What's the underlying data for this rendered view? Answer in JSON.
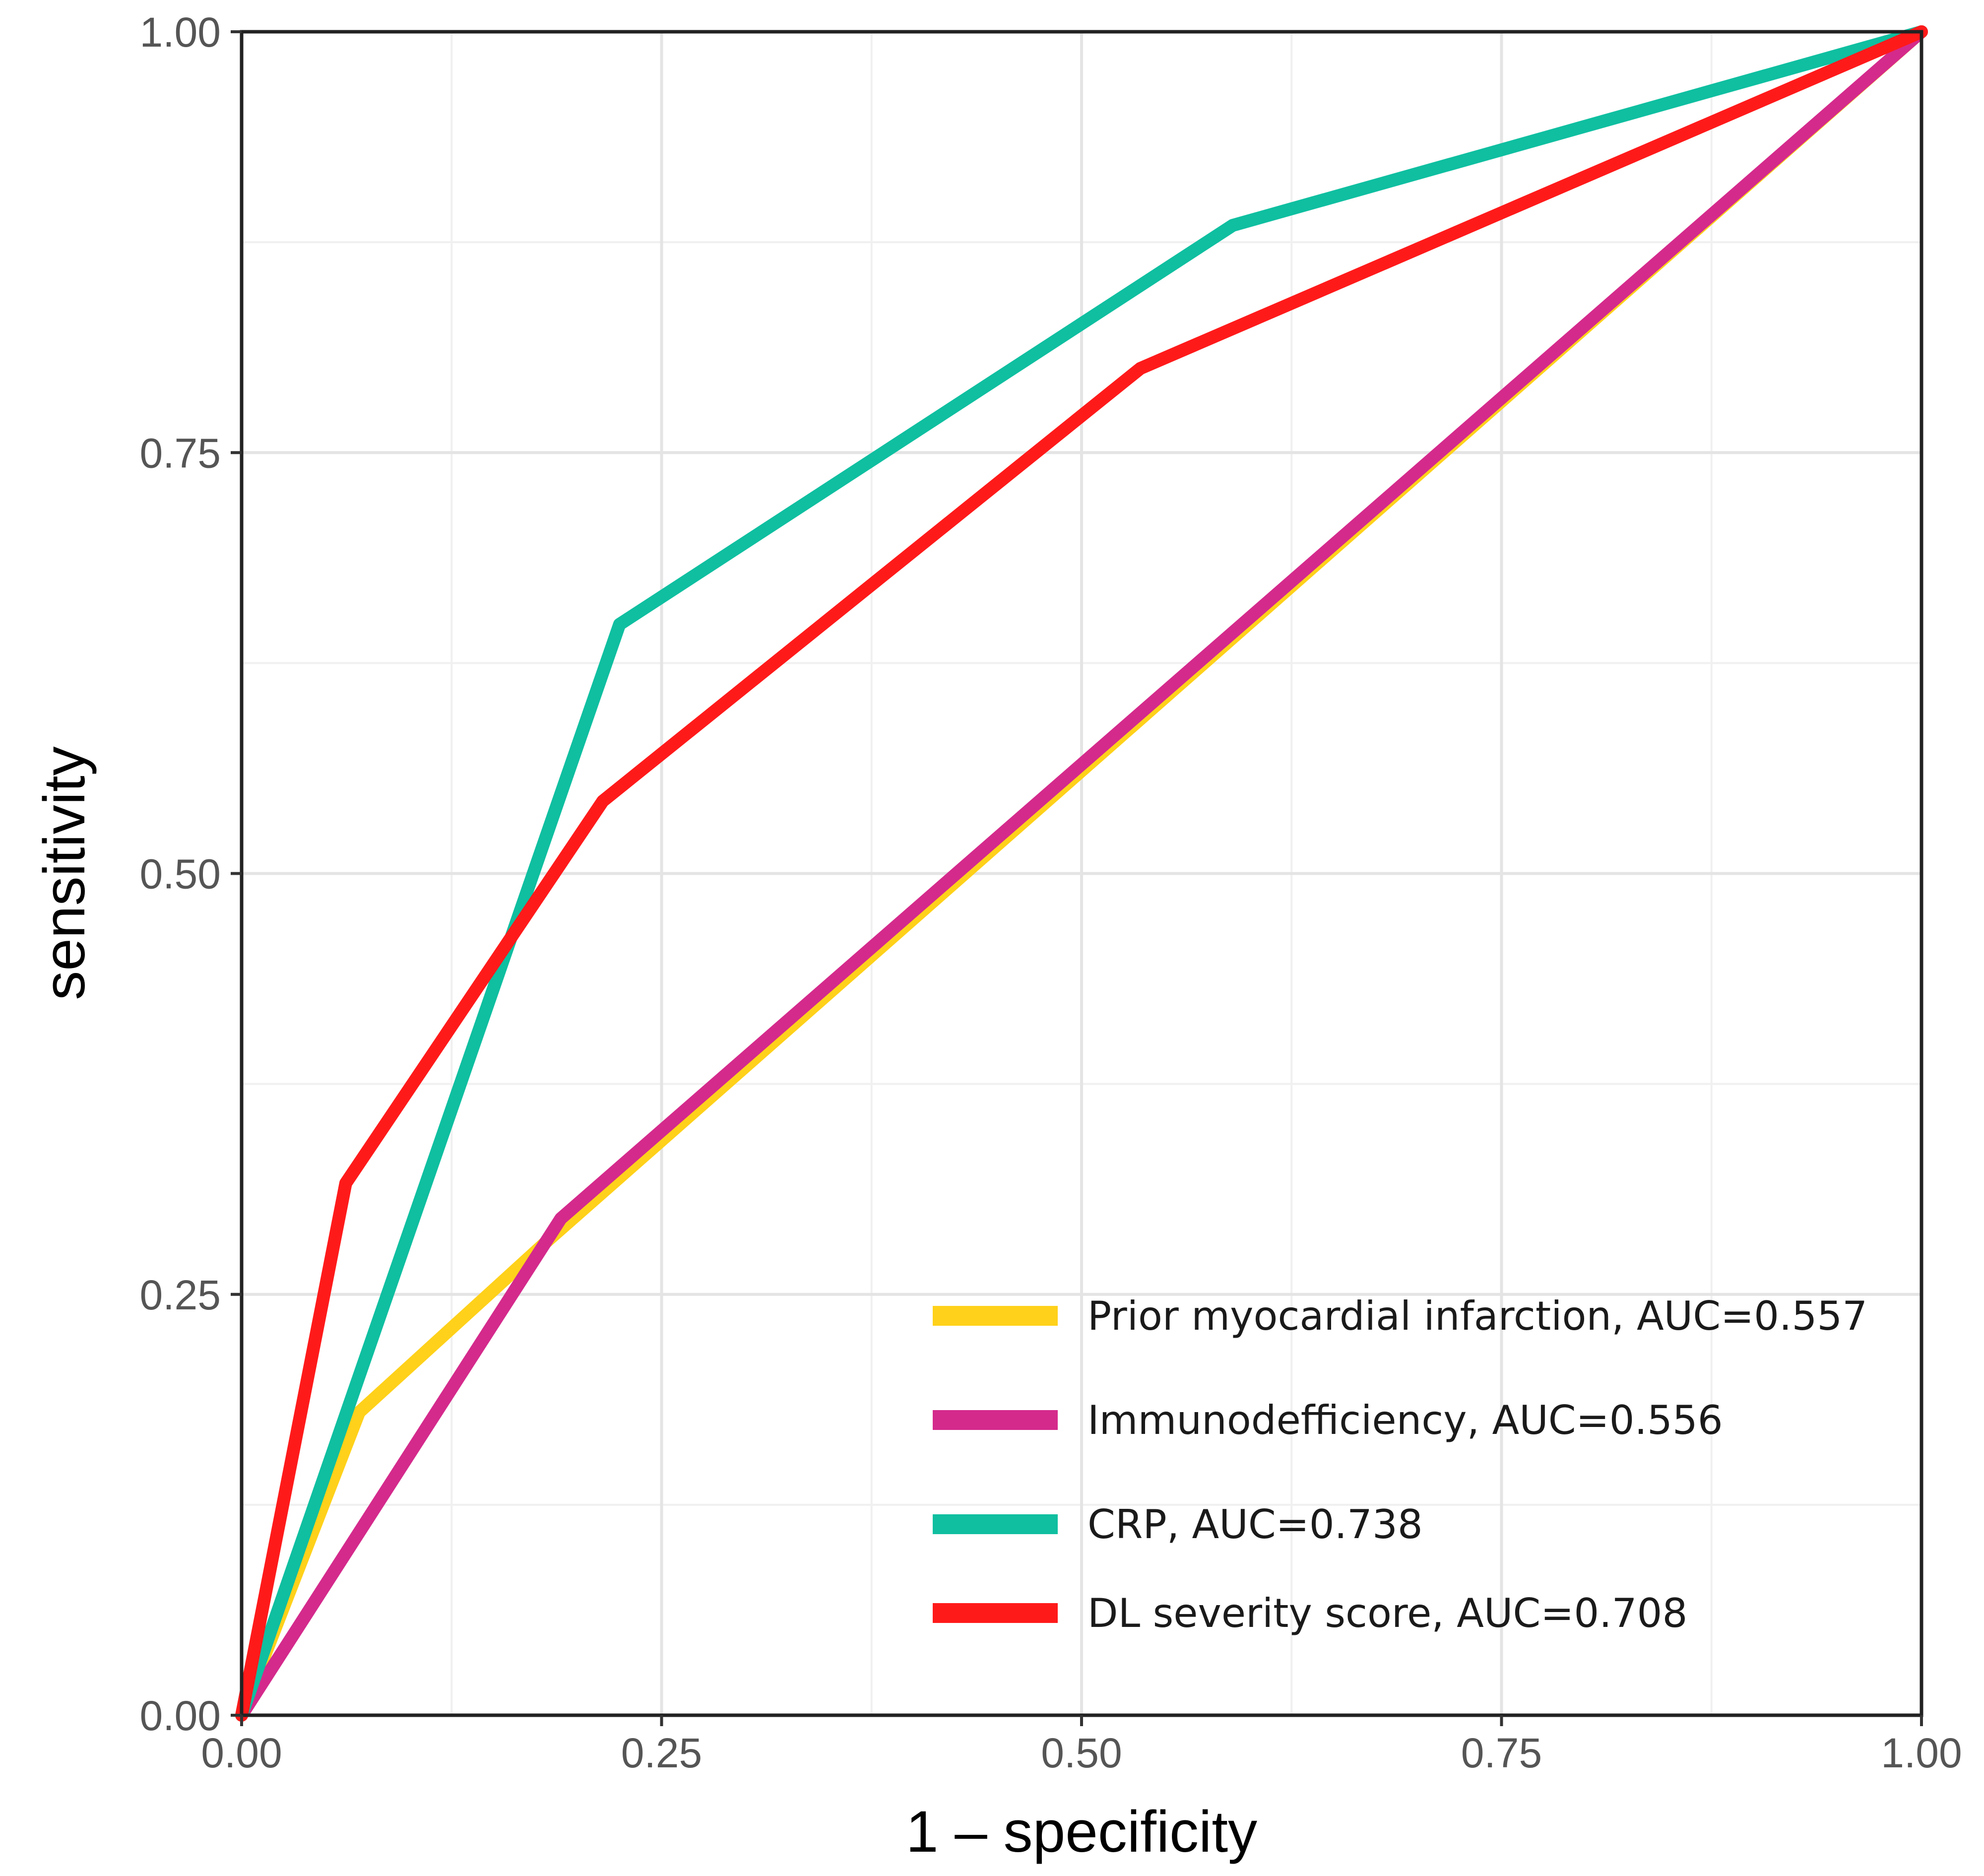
{
  "chart_data": {
    "type": "line",
    "title": "",
    "xlabel": "1 –  specificity",
    "ylabel": "sensitivity",
    "xlim": [
      0,
      1
    ],
    "ylim": [
      0,
      1
    ],
    "x_ticks": [
      0,
      0.25,
      0.5,
      0.75,
      1
    ],
    "y_ticks": [
      0,
      0.25,
      0.5,
      0.75,
      1
    ],
    "x_tick_labels": [
      "0.00",
      "0.25",
      "0.50",
      "0.75",
      "1.00"
    ],
    "y_tick_labels": [
      "0.00",
      "0.25",
      "0.50",
      "0.75",
      "1.00"
    ],
    "grid": true,
    "legend_position": "bottom-right",
    "series": [
      {
        "name": "Prior myocardial infarction, AUC=0.557",
        "color": "#FFD11A",
        "x": [
          0,
          0.07,
          0.18,
          1
        ],
        "y": [
          0,
          0.18,
          0.28,
          1
        ]
      },
      {
        "name": "Immunodefficiency, AUC=0.556",
        "color": "#D42A8C",
        "x": [
          0,
          0.19,
          1
        ],
        "y": [
          0,
          0.295,
          1
        ]
      },
      {
        "name": "CRP, AUC=0.738",
        "color": "#0FBFA0",
        "x": [
          0,
          0.225,
          0.59,
          1
        ],
        "y": [
          0,
          0.648,
          0.885,
          1
        ]
      },
      {
        "name": "DL severity score, AUC=0.708",
        "color": "#FF1A1A",
        "x": [
          0,
          0.062,
          0.215,
          0.535,
          1
        ],
        "y": [
          0,
          0.316,
          0.543,
          0.8,
          1
        ]
      }
    ]
  }
}
